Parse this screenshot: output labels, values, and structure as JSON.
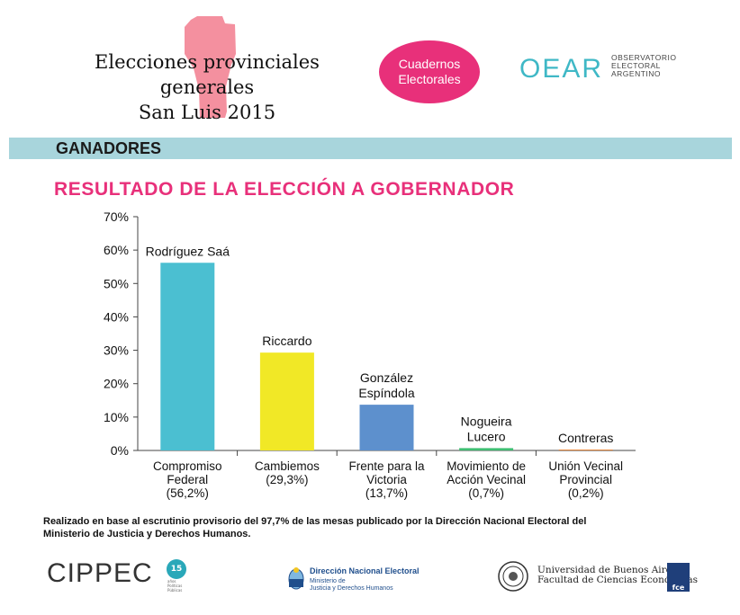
{
  "header": {
    "title_line1": "Elecciones provinciales generales",
    "title_line2": "San Luis 2015",
    "badge_line1": "Cuadernos",
    "badge_line2": "Electorales",
    "oear_logo": "OEAR",
    "oear_line1": "OBSERVATORIO",
    "oear_line2": "ELECTORAL",
    "oear_line3": "ARGENTINO",
    "colors": {
      "pink": "#e8307a",
      "shape_pink": "#f4909f",
      "teal": "#3fb8c6",
      "band": "#a8d5dc"
    }
  },
  "section": {
    "band_label": "GANADORES",
    "subtitle": "RESULTADO DE LA ELECCIÓN A GOBERNADOR"
  },
  "chart_data": {
    "type": "bar",
    "title": "RESULTADO DE LA ELECCIÓN A GOBERNADOR",
    "xlabel": "",
    "ylabel": "",
    "ylim": [
      0,
      70
    ],
    "yticks": [
      "0%",
      "10%",
      "20%",
      "30%",
      "40%",
      "50%",
      "60%",
      "70%"
    ],
    "ytick_values": [
      0,
      10,
      20,
      30,
      40,
      50,
      60,
      70
    ],
    "grid": false,
    "bars": [
      {
        "candidate": [
          "Rodríguez Saá"
        ],
        "category": [
          "Compromiso",
          "Federal",
          "(56,2%)"
        ],
        "value": 56.2,
        "color": "#4bbfd1"
      },
      {
        "candidate": [
          "Riccardo"
        ],
        "category": [
          "Cambiemos",
          "(29,3%)"
        ],
        "value": 29.3,
        "color": "#f1e826"
      },
      {
        "candidate": [
          "González",
          "Espíndola"
        ],
        "category": [
          "Frente para la",
          "Victoria",
          "(13,7%)"
        ],
        "value": 13.7,
        "color": "#5d90cd"
      },
      {
        "candidate": [
          "Nogueira",
          "Lucero"
        ],
        "category": [
          "Movimiento de",
          "Acción Vecinal",
          "(0,7%)"
        ],
        "value": 0.7,
        "color": "#3fbf73"
      },
      {
        "candidate": [
          "Contreras"
        ],
        "category": [
          "Unión Vecinal",
          "Provincial",
          "(0,2%)"
        ],
        "value": 0.2,
        "color": "#e7883b"
      }
    ]
  },
  "note": {
    "line1": "Realizado en base al escrutinio provisorio del 97,7% de las mesas publicado por la Dirección Nacional Electoral del",
    "line2": "Ministerio de Justicia y Derechos Humanos."
  },
  "footer": {
    "cippec": "CIPPEC",
    "cippec_badge": "15",
    "cippec_sub1": "años",
    "cippec_sub2": "Políticas",
    "cippec_sub3": "Públicas",
    "dne_title": "Dirección Nacional Electoral",
    "dne_sub1": "Ministerio de",
    "dne_sub2": "Justicia y Derechos Humanos",
    "uba_line1": "Universidad de Buenos Aires",
    "uba_line2": "Facultad de Ciencias Económicas",
    "fce": "fce"
  }
}
